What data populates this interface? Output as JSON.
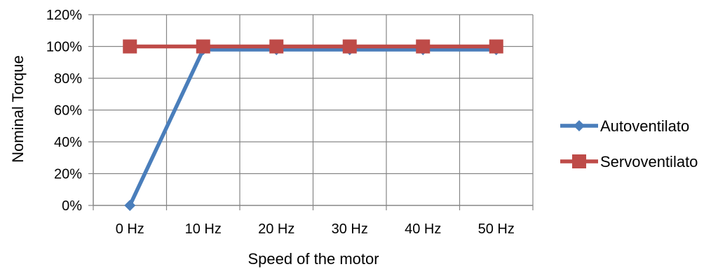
{
  "chart_data": {
    "type": "line",
    "categories": [
      "0 Hz",
      "10 Hz",
      "20 Hz",
      "30 Hz",
      "40 Hz",
      "50 Hz"
    ],
    "series": [
      {
        "name": "Autoventilato",
        "values": [
          0,
          98,
          98,
          98,
          98,
          98
        ],
        "color": "#4a7ebb",
        "marker": "diamond"
      },
      {
        "name": "Servoventilato",
        "values": [
          100,
          100,
          100,
          100,
          100,
          100
        ],
        "color": "#be4b48",
        "marker": "square"
      }
    ],
    "xlabel": "Speed of the motor",
    "ylabel": "Nominal Torque",
    "ylim": [
      0,
      120
    ],
    "yticks": [
      "0%",
      "20%",
      "40%",
      "60%",
      "80%",
      "100%",
      "120%"
    ],
    "grid": "vertical and horizontal",
    "legend": "right"
  }
}
